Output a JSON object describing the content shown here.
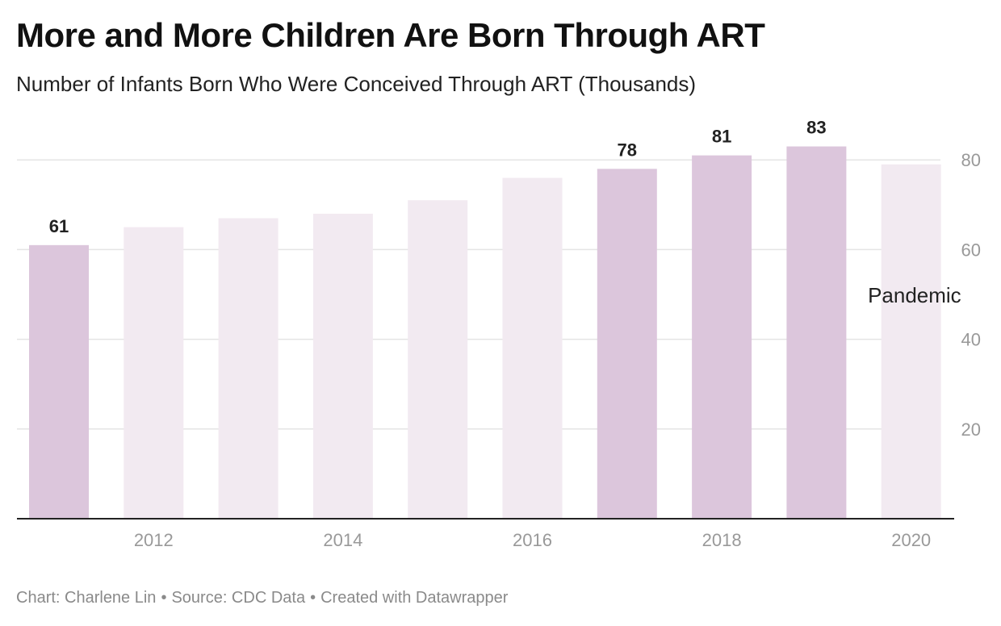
{
  "title": "More and More Children Are Born Through ART",
  "subtitle": "Number of Infants Born Who Were Conceived Through ART (Thousands)",
  "footer": {
    "chart_credit": "Chart: Charlene Lin",
    "source": "Source: CDC Data",
    "created_with": "Created with Datawrapper",
    "separator": "•"
  },
  "colors": {
    "bar_highlight": "#dcc6dc",
    "bar_muted": "#f2eaf1",
    "gridline": "#e4e4e4",
    "baseline": "#222222",
    "tick_text": "#999999",
    "value_label": "#222222",
    "annotation_text": "#222222"
  },
  "chart_data": {
    "type": "bar",
    "categories": [
      "2011",
      "2012",
      "2013",
      "2014",
      "2015",
      "2016",
      "2017",
      "2018",
      "2019",
      "2020"
    ],
    "values": [
      61,
      65,
      67,
      68,
      71,
      76,
      78,
      81,
      83,
      79
    ],
    "highlighted": [
      true,
      false,
      false,
      false,
      false,
      false,
      true,
      true,
      true,
      false
    ],
    "data_labels": [
      "61",
      "",
      "",
      "",
      "",
      "",
      "78",
      "81",
      "83",
      ""
    ],
    "x_tick_labels": [
      "2012",
      "2014",
      "2016",
      "2018",
      "2020"
    ],
    "y_ticks": [
      20,
      40,
      60,
      80
    ],
    "ylim": [
      0,
      85
    ],
    "y_axis_position": "right",
    "grid": true,
    "annotations": [
      {
        "category": "2020",
        "text": "Pandemic"
      }
    ],
    "xlabel": "",
    "ylabel": ""
  }
}
